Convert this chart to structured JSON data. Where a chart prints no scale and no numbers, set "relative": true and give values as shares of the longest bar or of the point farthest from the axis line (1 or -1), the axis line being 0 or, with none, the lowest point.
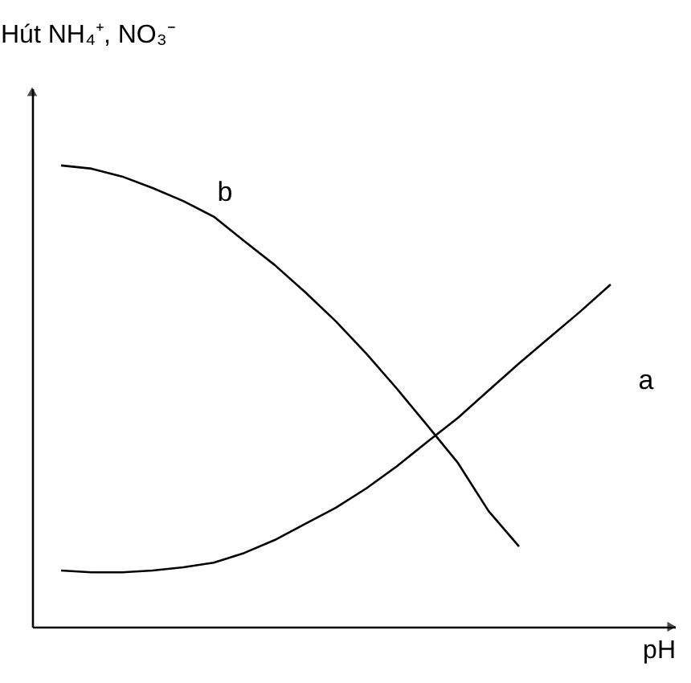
{
  "chart_data": {
    "type": "line",
    "relative": true,
    "ylabel": "Hút NH₄⁺, NO₃⁻",
    "xlabel": "pH",
    "marker": "none",
    "categories": [
      null,
      null,
      null,
      null,
      null,
      null,
      null,
      null,
      null,
      null,
      null,
      null,
      null,
      null,
      null,
      null,
      null,
      null,
      null
    ],
    "series": [
      {
        "name": "a",
        "color": "#000000",
        "values": [
          0.122,
          0.118,
          0.118,
          0.122,
          0.129,
          0.139,
          0.16,
          0.188,
          0.223,
          0.258,
          0.3,
          0.348,
          0.401,
          0.453,
          0.512,
          0.571,
          0.627,
          0.683,
          0.742
        ]
      },
      {
        "name": "b",
        "color": "#000000",
        "values": [
          1.0,
          0.993,
          0.976,
          0.951,
          0.923,
          0.889,
          0.836,
          0.784,
          0.725,
          0.662,
          0.592,
          0.516,
          0.436,
          0.355,
          0.251,
          0.174,
          null,
          null,
          null
        ]
      }
    ]
  }
}
